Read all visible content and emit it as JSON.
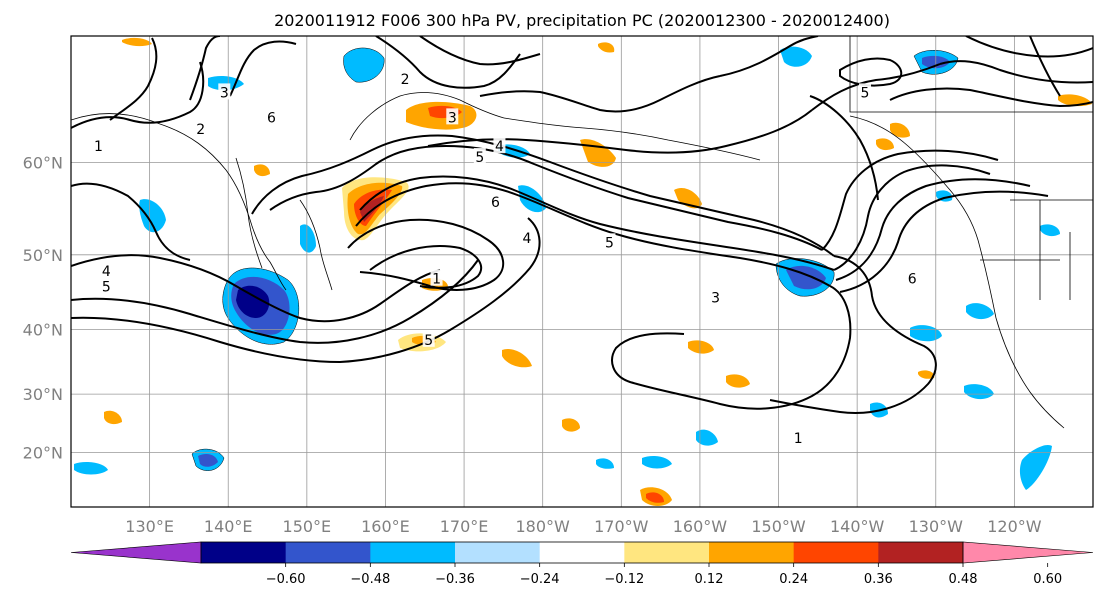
{
  "title": "2020011912 F006 300 hPa PV, precipitation PC (2020012300 - 2020012400)",
  "map": {
    "lon_min": 120,
    "lon_max": 250,
    "lat_min": 10,
    "lat_max": 70,
    "lon_ticks": [
      {
        "lon": 130,
        "label": "130°E"
      },
      {
        "lon": 140,
        "label": "140°E"
      },
      {
        "lon": 150,
        "label": "150°E"
      },
      {
        "lon": 160,
        "label": "160°E"
      },
      {
        "lon": 170,
        "label": "170°E"
      },
      {
        "lon": 180,
        "label": "180°W"
      },
      {
        "lon": 190,
        "label": "170°W"
      },
      {
        "lon": 200,
        "label": "160°W"
      },
      {
        "lon": 210,
        "label": "150°W"
      },
      {
        "lon": 220,
        "label": "140°W"
      },
      {
        "lon": 230,
        "label": "130°W"
      },
      {
        "lon": 240,
        "label": "120°W"
      }
    ],
    "lat_ticks": [
      {
        "lat": 20,
        "label": "20°N"
      },
      {
        "lat": 30,
        "label": "30°N"
      },
      {
        "lat": 40,
        "label": "40°N"
      },
      {
        "lat": 50,
        "label": "50°N"
      },
      {
        "lat": 60,
        "label": "60°N"
      }
    ],
    "grid": true,
    "gridline_lons": [
      130,
      140,
      150,
      160,
      170,
      180,
      190,
      200,
      210,
      220,
      230,
      240
    ],
    "gridline_lats": [
      20,
      30,
      40,
      50,
      60
    ]
  },
  "colorbar": {
    "extend": "both",
    "colors": [
      "#9933cc",
      "#000088",
      "#3355cc",
      "#00bbff",
      "#b3e0ff",
      "#ffffff",
      "#ffe680",
      "#ffa500",
      "#ff4500",
      "#b22222",
      "#ff88aa"
    ],
    "ticks": [
      {
        "value": -0.6,
        "label": "−0.60"
      },
      {
        "value": -0.48,
        "label": "−0.48"
      },
      {
        "value": -0.36,
        "label": "−0.36"
      },
      {
        "value": -0.24,
        "label": "−0.24"
      },
      {
        "value": -0.12,
        "label": "−0.12"
      },
      {
        "value": 0.12,
        "label": "0.12"
      },
      {
        "value": 0.24,
        "label": "0.24"
      },
      {
        "value": 0.36,
        "label": "0.36"
      },
      {
        "value": 0.48,
        "label": "0.48"
      },
      {
        "value": 0.6,
        "label": "0.60"
      }
    ]
  },
  "pv_contours": {
    "color": "#000000",
    "labels": [
      {
        "text": "1",
        "lon": 123.5,
        "lat": 61.5
      },
      {
        "text": "2",
        "lon": 136.5,
        "lat": 63
      },
      {
        "text": "3",
        "lon": 139.5,
        "lat": 66
      },
      {
        "text": "6",
        "lon": 145.5,
        "lat": 64
      },
      {
        "text": "2",
        "lon": 162.5,
        "lat": 67
      },
      {
        "text": "3",
        "lon": 168.5,
        "lat": 64
      },
      {
        "text": "4",
        "lon": 174.5,
        "lat": 61.5
      },
      {
        "text": "5",
        "lon": 172,
        "lat": 60.5
      },
      {
        "text": "6",
        "lon": 174,
        "lat": 56
      },
      {
        "text": "4",
        "lon": 178,
        "lat": 52
      },
      {
        "text": "5",
        "lon": 188.5,
        "lat": 51.5
      },
      {
        "text": "1",
        "lon": 166.5,
        "lat": 47
      },
      {
        "text": "5",
        "lon": 165.5,
        "lat": 38.5
      },
      {
        "text": "4",
        "lon": 124.5,
        "lat": 48
      },
      {
        "text": "5",
        "lon": 124.5,
        "lat": 46
      },
      {
        "text": "3",
        "lon": 202,
        "lat": 44.5
      },
      {
        "text": "6",
        "lon": 227,
        "lat": 47
      },
      {
        "text": "5",
        "lon": 221,
        "lat": 66
      },
      {
        "text": "1",
        "lon": 212.5,
        "lat": 22.5
      }
    ]
  }
}
